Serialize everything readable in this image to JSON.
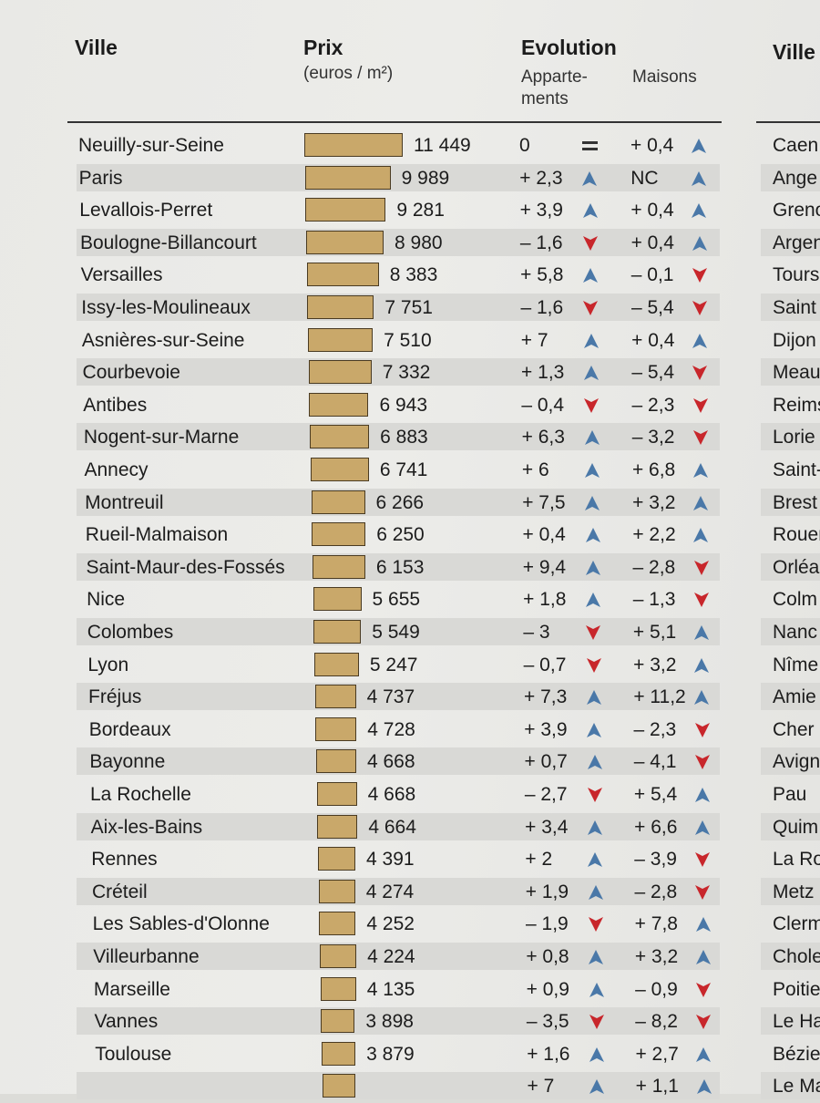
{
  "headers": {
    "ville": "Ville",
    "prix": "Prix",
    "prix_unit": "(euros / m²)",
    "evolution": "Evolution",
    "appartements": "Apparte-\nments",
    "maisons": "Maisons",
    "ville_right": "Ville"
  },
  "colors": {
    "up": "#4a78a8",
    "down": "#c8262b",
    "bar": "#c9a86a"
  },
  "rows": [
    {
      "city": "Neuilly-sur-Seine",
      "price": "11 449",
      "price_value": 11449,
      "apt": "0",
      "apt_icon": "equal",
      "mai": "+ 0,4",
      "mai_icon": "up",
      "right": "Caen"
    },
    {
      "city": "Paris",
      "price": "9 989",
      "price_value": 9989,
      "apt": "+ 2,3",
      "apt_icon": "up",
      "mai": "NC",
      "mai_icon": "up",
      "right": "Ange"
    },
    {
      "city": "Levallois-Perret",
      "price": "9 281",
      "price_value": 9281,
      "apt": "+ 3,9",
      "apt_icon": "up",
      "mai": "+ 0,4",
      "mai_icon": "up",
      "right": "Greno"
    },
    {
      "city": "Boulogne-Billancourt",
      "price": "8 980",
      "price_value": 8980,
      "apt": "– 1,6",
      "apt_icon": "down",
      "mai": "+ 0,4",
      "mai_icon": "up",
      "right": "Argen"
    },
    {
      "city": "Versailles",
      "price": "8 383",
      "price_value": 8383,
      "apt": "+ 5,8",
      "apt_icon": "up",
      "mai": "– 0,1",
      "mai_icon": "down",
      "right": "Tours"
    },
    {
      "city": "Issy-les-Moulineaux",
      "price": "7 751",
      "price_value": 7751,
      "apt": "– 1,6",
      "apt_icon": "down",
      "mai": "– 5,4",
      "mai_icon": "down",
      "right": "Saint"
    },
    {
      "city": "Asnières-sur-Seine",
      "price": "7 510",
      "price_value": 7510,
      "apt": "+ 7",
      "apt_icon": "up",
      "mai": "+ 0,4",
      "mai_icon": "up",
      "right": "Dijon"
    },
    {
      "city": "Courbevoie",
      "price": "7 332",
      "price_value": 7332,
      "apt": "+ 1,3",
      "apt_icon": "up",
      "mai": "– 5,4",
      "mai_icon": "down",
      "right": "Meau"
    },
    {
      "city": "Antibes",
      "price": "6 943",
      "price_value": 6943,
      "apt": "– 0,4",
      "apt_icon": "down",
      "mai": "– 2,3",
      "mai_icon": "down",
      "right": "Reims"
    },
    {
      "city": "Nogent-sur-Marne",
      "price": "6 883",
      "price_value": 6883,
      "apt": "+ 6,3",
      "apt_icon": "up",
      "mai": "– 3,2",
      "mai_icon": "down",
      "right": "Lorie"
    },
    {
      "city": "Annecy",
      "price": "6 741",
      "price_value": 6741,
      "apt": "+ 6",
      "apt_icon": "up",
      "mai": "+ 6,8",
      "mai_icon": "up",
      "right": "Saint-"
    },
    {
      "city": "Montreuil",
      "price": "6 266",
      "price_value": 6266,
      "apt": "+ 7,5",
      "apt_icon": "up",
      "mai": "+ 3,2",
      "mai_icon": "up",
      "right": "Brest"
    },
    {
      "city": "Rueil-Malmaison",
      "price": "6 250",
      "price_value": 6250,
      "apt": "+ 0,4",
      "apt_icon": "up",
      "mai": "+ 2,2",
      "mai_icon": "up",
      "right": "Rouen"
    },
    {
      "city": "Saint-Maur-des-Fossés",
      "price": "6 153",
      "price_value": 6153,
      "apt": "+ 9,4",
      "apt_icon": "up",
      "mai": "– 2,8",
      "mai_icon": "down",
      "right": "Orléa"
    },
    {
      "city": "Nice",
      "price": "5 655",
      "price_value": 5655,
      "apt": "+ 1,8",
      "apt_icon": "up",
      "mai": "– 1,3",
      "mai_icon": "down",
      "right": "Colm"
    },
    {
      "city": "Colombes",
      "price": "5 549",
      "price_value": 5549,
      "apt": "– 3",
      "apt_icon": "down",
      "mai": "+ 5,1",
      "mai_icon": "up",
      "right": "Nanc"
    },
    {
      "city": "Lyon",
      "price": "5 247",
      "price_value": 5247,
      "apt": "– 0,7",
      "apt_icon": "down",
      "mai": "+ 3,2",
      "mai_icon": "up",
      "right": "Nîme"
    },
    {
      "city": "Fréjus",
      "price": "4 737",
      "price_value": 4737,
      "apt": "+ 7,3",
      "apt_icon": "up",
      "mai": "+ 11,2",
      "mai_icon": "up",
      "right": "Amie"
    },
    {
      "city": "Bordeaux",
      "price": "4 728",
      "price_value": 4728,
      "apt": "+ 3,9",
      "apt_icon": "up",
      "mai": "– 2,3",
      "mai_icon": "down",
      "right": "Cher"
    },
    {
      "city": "Bayonne",
      "price": "4 668",
      "price_value": 4668,
      "apt": "+ 0,7",
      "apt_icon": "up",
      "mai": "– 4,1",
      "mai_icon": "down",
      "right": "Avign"
    },
    {
      "city": "La Rochelle",
      "price": "4 668",
      "price_value": 4668,
      "apt": "– 2,7",
      "apt_icon": "down",
      "mai": "+ 5,4",
      "mai_icon": "up",
      "right": "Pau"
    },
    {
      "city": "Aix-les-Bains",
      "price": "4 664",
      "price_value": 4664,
      "apt": "+ 3,4",
      "apt_icon": "up",
      "mai": "+ 6,6",
      "mai_icon": "up",
      "right": "Quim"
    },
    {
      "city": "Rennes",
      "price": "4 391",
      "price_value": 4391,
      "apt": "+ 2",
      "apt_icon": "up",
      "mai": "– 3,9",
      "mai_icon": "down",
      "right": "La Ro"
    },
    {
      "city": "Créteil",
      "price": "4 274",
      "price_value": 4274,
      "apt": "+ 1,9",
      "apt_icon": "up",
      "mai": "– 2,8",
      "mai_icon": "down",
      "right": "Metz"
    },
    {
      "city": "Les Sables-d'Olonne",
      "price": "4 252",
      "price_value": 4252,
      "apt": "– 1,9",
      "apt_icon": "down",
      "mai": "+ 7,8",
      "mai_icon": "up",
      "right": "Clerm"
    },
    {
      "city": "Villeurbanne",
      "price": "4 224",
      "price_value": 4224,
      "apt": "+ 0,8",
      "apt_icon": "up",
      "mai": "+ 3,2",
      "mai_icon": "up",
      "right": "Chole"
    },
    {
      "city": "Marseille",
      "price": "4 135",
      "price_value": 4135,
      "apt": "+ 0,9",
      "apt_icon": "up",
      "mai": "– 0,9",
      "mai_icon": "down",
      "right": "Poitie"
    },
    {
      "city": "Vannes",
      "price": "3 898",
      "price_value": 3898,
      "apt": "– 3,5",
      "apt_icon": "down",
      "mai": "– 8,2",
      "mai_icon": "down",
      "right": "Le Ha"
    },
    {
      "city": "Toulouse",
      "price": "3 879",
      "price_value": 3879,
      "apt": "+ 1,6",
      "apt_icon": "up",
      "mai": "+ 2,7",
      "mai_icon": "up",
      "right": "Bézie"
    },
    {
      "city": "",
      "price": "",
      "price_value": 3800,
      "apt": "+ 7",
      "apt_icon": "up",
      "mai": "+ 1,1",
      "mai_icon": "up",
      "right": "Le Ma"
    }
  ]
}
